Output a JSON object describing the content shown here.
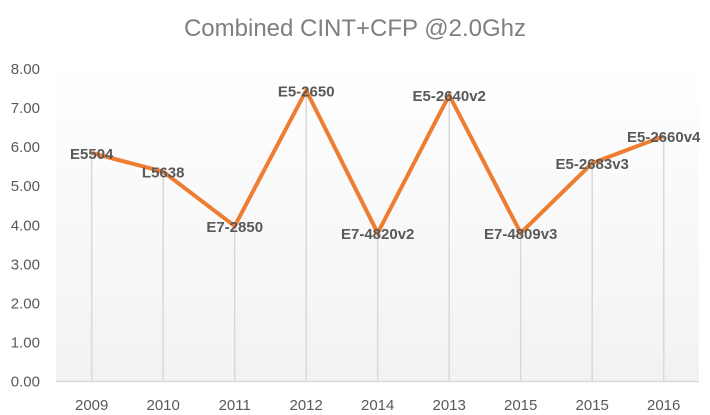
{
  "chart_data": {
    "type": "line",
    "title": "Combined CINT+CFP @2.0Ghz",
    "xlabel": "",
    "ylabel": "",
    "categories": [
      "2009",
      "2010",
      "2011",
      "2012",
      "2014",
      "2013",
      "2015",
      "2015",
      "2016"
    ],
    "series": [
      {
        "values": [
          5.85,
          5.37,
          3.98,
          7.45,
          3.8,
          7.33,
          3.8,
          5.59,
          6.28
        ],
        "labels": [
          "E5504",
          "L5638",
          "E7-2850",
          "E5-2650",
          "E7-4820v2",
          "E5-2640v2",
          "E7-4809v3",
          "E5-2683v3",
          "E5-2660v4"
        ],
        "color": "#ED7D31"
      }
    ],
    "ylim": [
      0,
      8
    ],
    "yticks": [
      "0.00",
      "1.00",
      "2.00",
      "3.00",
      "4.00",
      "5.00",
      "6.00",
      "7.00",
      "8.00"
    ],
    "grid": "vertical",
    "legend": "none"
  }
}
